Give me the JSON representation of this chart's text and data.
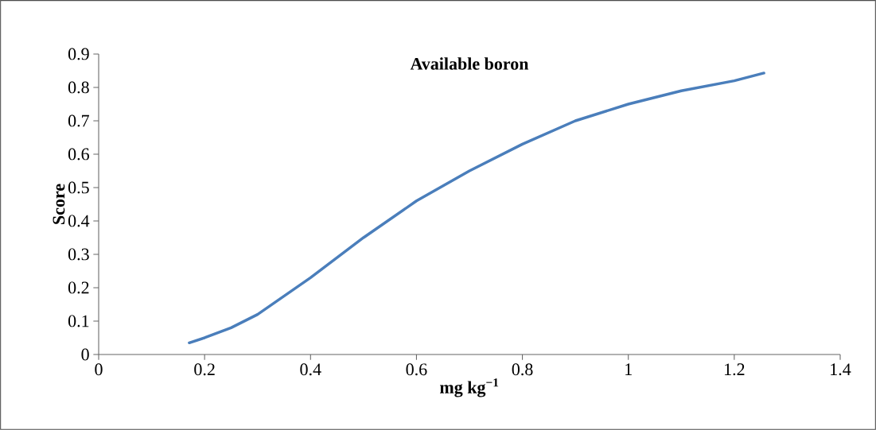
{
  "chart_data": {
    "type": "line",
    "title": "Available boron",
    "xlabel": "mg kg$^{−1}$",
    "ylabel": "Score",
    "series": [
      {
        "color": "#4a7ebb",
        "x": [
          0.171,
          0.2,
          0.25,
          0.3,
          0.4,
          0.5,
          0.6,
          0.7,
          0.8,
          0.9,
          1.0,
          1.1,
          1.2,
          1.256
        ],
        "values": [
          0.035,
          0.05,
          0.08,
          0.12,
          0.23,
          0.35,
          0.46,
          0.55,
          0.63,
          0.7,
          0.75,
          0.79,
          0.82,
          0.843
        ]
      }
    ],
    "xlim": [
      0,
      1.4
    ],
    "xticks": [
      0,
      0.2,
      0.4,
      0.6,
      0.8,
      1,
      1.2,
      1.4
    ],
    "ylim": [
      0,
      0.9
    ],
    "yticks": [
      0,
      0.1,
      0.2,
      0.3,
      0.4,
      0.5,
      0.6,
      0.7,
      0.8,
      0.9
    ],
    "grid": false,
    "legend": false,
    "marker": "none",
    "line_style": "solid"
  }
}
